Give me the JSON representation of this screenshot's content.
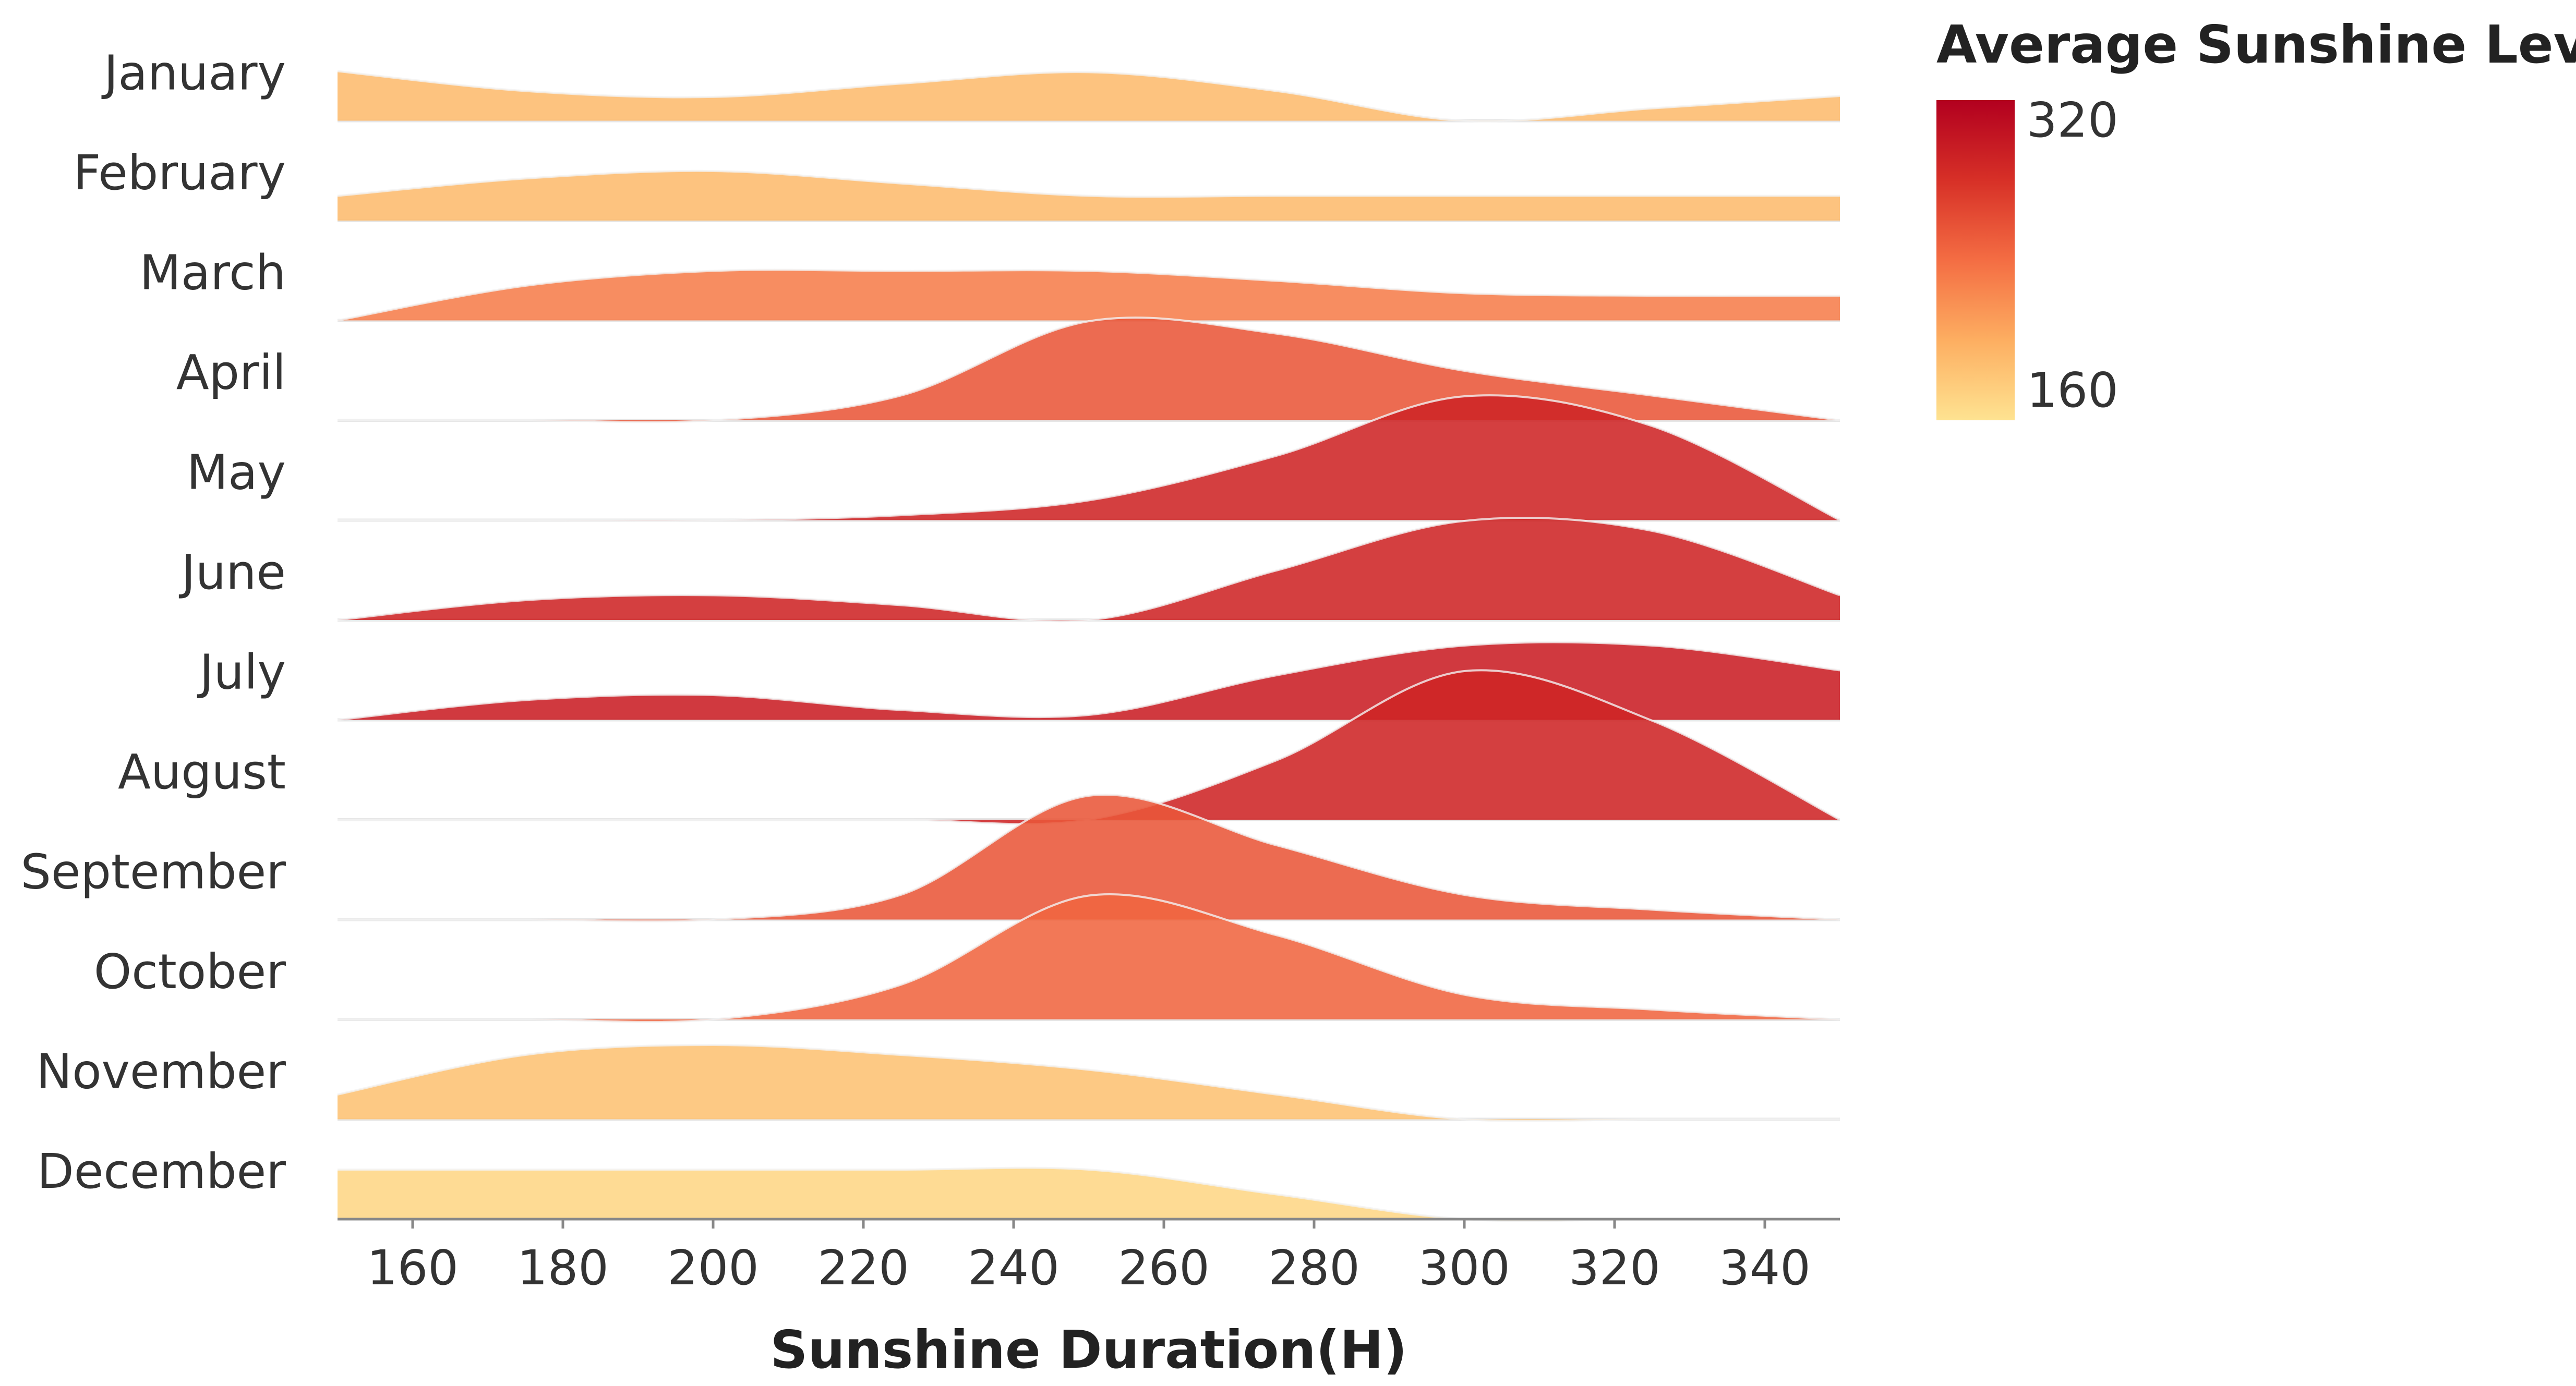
{
  "chart_data": {
    "type": "area",
    "subtype": "ridgeline",
    "xlabel": "Sunshine Duration(H)",
    "xlim": [
      150,
      350
    ],
    "x_ticks": [
      "160",
      "180",
      "200",
      "220",
      "240",
      "260",
      "280",
      "300",
      "320",
      "340"
    ],
    "x": [
      150,
      175,
      200,
      225,
      250,
      275,
      300,
      325,
      350
    ],
    "categories": [
      "January",
      "February",
      "March",
      "April",
      "May",
      "June",
      "July",
      "August",
      "September",
      "October",
      "November",
      "December"
    ],
    "series": [
      {
        "name": "January",
        "average": 190,
        "values": [
          1.0,
          0.6,
          0.48,
          0.75,
          0.98,
          0.6,
          0.0,
          0.25,
          0.5
        ]
      },
      {
        "name": "February",
        "average": 190,
        "values": [
          0.5,
          0.85,
          1.0,
          0.75,
          0.5,
          0.5,
          0.5,
          0.5,
          0.5
        ]
      },
      {
        "name": "March",
        "average": 230,
        "values": [
          0.0,
          0.7,
          1.0,
          1.0,
          1.0,
          0.8,
          0.55,
          0.5,
          0.5
        ]
      },
      {
        "name": "April",
        "average": 255,
        "values": [
          0.0,
          0.0,
          0.0,
          0.5,
          2.0,
          1.75,
          1.0,
          0.5,
          0.0
        ]
      },
      {
        "name": "May",
        "average": 290,
        "values": [
          0.0,
          0.0,
          0.0,
          0.1,
          0.4,
          1.3,
          2.5,
          1.9,
          0.0
        ]
      },
      {
        "name": "June",
        "average": 290,
        "values": [
          0.0,
          0.4,
          0.5,
          0.3,
          0.0,
          1.0,
          2.0,
          1.8,
          0.5
        ]
      },
      {
        "name": "July",
        "average": 295,
        "values": [
          0.0,
          0.4,
          0.5,
          0.2,
          0.1,
          0.9,
          1.5,
          1.5,
          1.0
        ]
      },
      {
        "name": "August",
        "average": 290,
        "values": [
          0.0,
          0.0,
          0.0,
          0.0,
          0.0,
          1.2,
          3.0,
          2.0,
          0.0
        ]
      },
      {
        "name": "September",
        "average": 255,
        "values": [
          0.0,
          0.0,
          0.0,
          0.5,
          2.5,
          1.5,
          0.5,
          0.2,
          0.0
        ]
      },
      {
        "name": "October",
        "average": 245,
        "values": [
          0.0,
          0.0,
          0.0,
          0.7,
          2.5,
          1.7,
          0.5,
          0.2,
          0.0
        ]
      },
      {
        "name": "November",
        "average": 185,
        "values": [
          0.5,
          1.3,
          1.5,
          1.3,
          1.0,
          0.5,
          0.0,
          0.0,
          0.0
        ]
      },
      {
        "name": "December",
        "average": 170,
        "values": [
          1.0,
          1.0,
          1.0,
          1.0,
          1.0,
          0.5,
          0.0,
          0.0,
          0.0
        ]
      }
    ],
    "legend": {
      "title": "Average Sunshine Level",
      "min": 160,
      "max": 320,
      "min_label": "160",
      "max_label": "320",
      "colors": [
        "#fee391",
        "#fdae61",
        "#f46d43",
        "#d73027",
        "#b2001f"
      ]
    },
    "grid": false,
    "legend_position": "top-right"
  }
}
